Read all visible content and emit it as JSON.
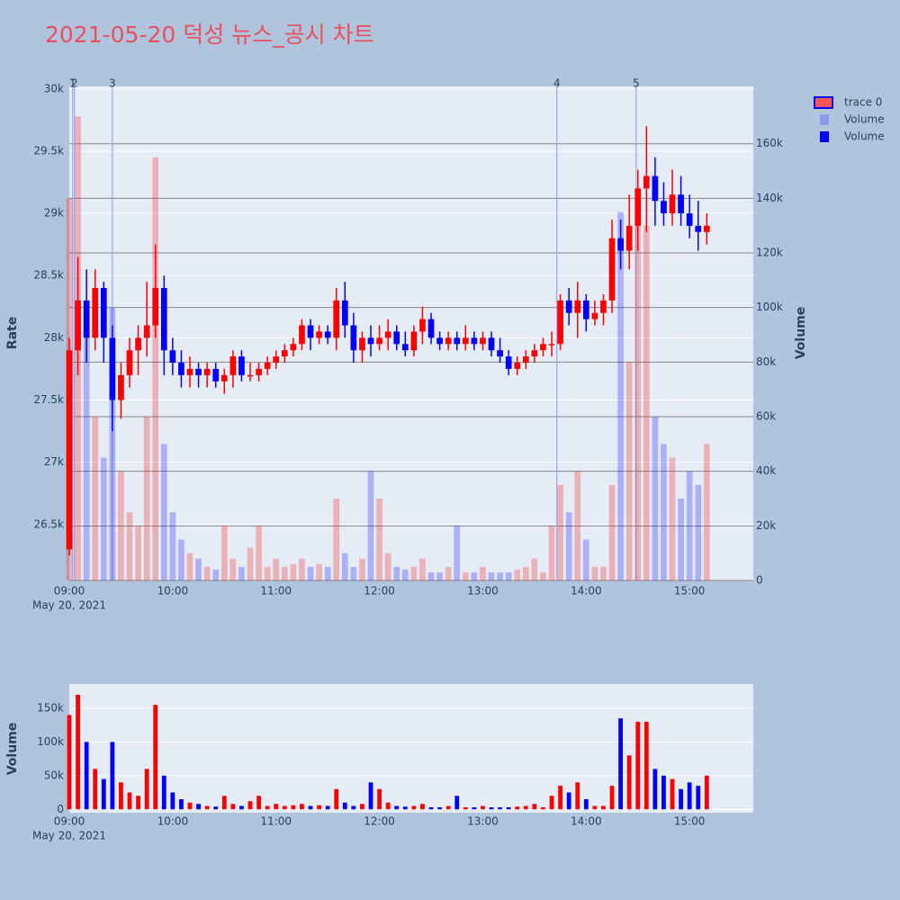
{
  "chart_data": [
    {
      "type": "candlestick",
      "title": "2021-05-20 덕성 뉴스_공시 차트",
      "name": "trace 0",
      "x": [
        "09:00",
        "09:05",
        "09:10",
        "09:15",
        "09:20",
        "09:25",
        "09:30",
        "09:35",
        "09:40",
        "09:45",
        "09:50",
        "09:55",
        "10:00",
        "10:05",
        "10:10",
        "10:15",
        "10:20",
        "10:25",
        "10:30",
        "10:35",
        "10:40",
        "10:45",
        "10:50",
        "10:55",
        "11:00",
        "11:05",
        "11:10",
        "11:15",
        "11:20",
        "11:25",
        "11:30",
        "11:35",
        "11:40",
        "11:45",
        "11:50",
        "11:55",
        "12:00",
        "12:05",
        "12:10",
        "12:15",
        "12:20",
        "12:25",
        "12:30",
        "12:35",
        "12:40",
        "12:45",
        "12:50",
        "12:55",
        "13:00",
        "13:05",
        "13:10",
        "13:15",
        "13:20",
        "13:25",
        "13:30",
        "13:35",
        "13:40",
        "13:45",
        "13:50",
        "13:55",
        "14:00",
        "14:05",
        "14:10",
        "14:15",
        "14:20",
        "14:25",
        "14:30",
        "14:35",
        "14:40",
        "14:45",
        "14:50",
        "14:55",
        "15:00",
        "15:05",
        "15:10"
      ],
      "open": [
        26300,
        27900,
        28300,
        28000,
        28400,
        28000,
        27500,
        27700,
        27900,
        28000,
        28100,
        28400,
        27900,
        27800,
        27700,
        27750,
        27700,
        27750,
        27650,
        27700,
        27850,
        27700,
        27700,
        27750,
        27800,
        27850,
        27900,
        27950,
        28100,
        28000,
        28050,
        28000,
        28300,
        28100,
        27900,
        28000,
        27950,
        28000,
        28050,
        27950,
        27900,
        28050,
        28150,
        28000,
        27950,
        28000,
        27950,
        28000,
        27950,
        28000,
        27900,
        27850,
        27750,
        27800,
        27850,
        27900,
        27950,
        27950,
        28300,
        28200,
        28300,
        28150,
        28200,
        28300,
        28800,
        28700,
        28900,
        29200,
        29300,
        29100,
        29000,
        29150,
        29000,
        28900,
        28850
      ],
      "high": [
        28000,
        28650,
        28550,
        28550,
        28450,
        28100,
        27800,
        28000,
        28100,
        28450,
        28750,
        28500,
        28000,
        27900,
        27850,
        27800,
        27800,
        27800,
        27750,
        27900,
        27900,
        27800,
        27800,
        27850,
        27900,
        27950,
        28000,
        28150,
        28150,
        28100,
        28100,
        28400,
        28450,
        28200,
        28050,
        28100,
        28100,
        28150,
        28100,
        28050,
        28100,
        28250,
        28200,
        28050,
        28050,
        28050,
        28100,
        28050,
        28050,
        28050,
        28000,
        27900,
        27850,
        27900,
        27950,
        28000,
        28050,
        28350,
        28400,
        28450,
        28350,
        28300,
        28350,
        28950,
        28950,
        29150,
        29350,
        29700,
        29450,
        29250,
        29350,
        29300,
        29150,
        29100,
        29000
      ],
      "low": [
        26250,
        27700,
        27800,
        27900,
        27800,
        27250,
        27350,
        27600,
        27700,
        27850,
        28000,
        27700,
        27700,
        27600,
        27600,
        27600,
        27600,
        27600,
        27550,
        27600,
        27650,
        27650,
        27650,
        27700,
        27750,
        27800,
        27850,
        27900,
        27900,
        27950,
        27950,
        27900,
        28000,
        27800,
        27800,
        27850,
        27900,
        27900,
        27900,
        27850,
        27850,
        27950,
        27950,
        27900,
        27900,
        27900,
        27900,
        27900,
        27900,
        27850,
        27800,
        27700,
        27700,
        27750,
        27800,
        27850,
        27850,
        27900,
        28100,
        28000,
        28050,
        28100,
        28100,
        28200,
        28550,
        28550,
        28700,
        28850,
        28900,
        28900,
        28900,
        28900,
        28800,
        28700,
        28750
      ],
      "close": [
        27900,
        28300,
        28000,
        28400,
        28000,
        27500,
        27700,
        27900,
        28000,
        28100,
        28400,
        27900,
        27800,
        27700,
        27750,
        27700,
        27750,
        27650,
        27700,
        27850,
        27700,
        27700,
        27750,
        27800,
        27850,
        27900,
        27950,
        28100,
        28000,
        28050,
        28000,
        28300,
        28100,
        27900,
        28000,
        27950,
        28000,
        28050,
        27950,
        27900,
        28050,
        28150,
        28000,
        27950,
        28000,
        27950,
        28000,
        27950,
        28000,
        27900,
        27850,
        27750,
        27800,
        27850,
        27900,
        27950,
        27950,
        28300,
        28200,
        28300,
        28150,
        28200,
        28300,
        28800,
        28700,
        28900,
        29200,
        29300,
        29100,
        29000,
        29150,
        29000,
        28900,
        28850,
        28900
      ],
      "increasing_color": "#ff0000",
      "decreasing_color": "#0000ff",
      "volume": {
        "name": "Volume",
        "axis": "y2",
        "values": [
          140000,
          170000,
          100000,
          60000,
          45000,
          100000,
          40000,
          25000,
          20000,
          60000,
          155000,
          50000,
          25000,
          15000,
          10000,
          8000,
          5000,
          4000,
          20000,
          8000,
          5000,
          12000,
          20000,
          5000,
          8000,
          5000,
          6000,
          8000,
          5000,
          6000,
          5000,
          30000,
          10000,
          5000,
          8000,
          40000,
          30000,
          10000,
          5000,
          4000,
          5000,
          8000,
          3000,
          3000,
          5000,
          20000,
          3000,
          3000,
          5000,
          3000,
          3000,
          3000,
          4000,
          5000,
          8000,
          3000,
          20000,
          35000,
          25000,
          40000,
          15000,
          5000,
          5000,
          35000,
          135000,
          80000,
          130000,
          130000,
          60000,
          50000,
          45000,
          30000,
          40000,
          35000,
          50000
        ]
      },
      "xlim": [
        "09:00",
        "15:37"
      ],
      "xticks": [
        "09:00",
        "10:00",
        "11:00",
        "12:00",
        "13:00",
        "14:00",
        "15:00"
      ],
      "x_date": "May 20, 2021",
      "ylim": [
        26050,
        30020
      ],
      "yticks": [
        {
          "value": 26500,
          "label": "26.5k"
        },
        {
          "value": 27000,
          "label": "27k"
        },
        {
          "value": 27500,
          "label": "27.5k"
        },
        {
          "value": 28000,
          "label": "28k"
        },
        {
          "value": 28500,
          "label": "28.5k"
        },
        {
          "value": 29000,
          "label": "29k"
        },
        {
          "value": 29500,
          "label": "29.5k"
        },
        {
          "value": 30000,
          "label": "30k"
        }
      ],
      "y2lim": [
        0,
        181000
      ],
      "y2ticks": [
        0,
        {
          "value": 20000,
          "label": "20k"
        },
        {
          "value": 40000,
          "label": "40k"
        },
        {
          "value": 60000,
          "label": "60k"
        },
        {
          "value": 80000,
          "label": "80k"
        },
        {
          "value": 100000,
          "label": "100k"
        },
        {
          "value": 120000,
          "label": "120k"
        },
        {
          "value": 140000,
          "label": "140k"
        },
        {
          "value": 160000,
          "label": "160k"
        }
      ],
      "ylabel": "Rate",
      "y2label": "Volume",
      "events": [
        {
          "label": "1",
          "x": "09:02"
        },
        {
          "label": "2",
          "x": "09:03"
        },
        {
          "label": "3",
          "x": "09:25"
        },
        {
          "label": "4",
          "x": "13:43"
        },
        {
          "label": "5",
          "x": "14:29"
        }
      ]
    },
    {
      "type": "bar",
      "name": "Volume",
      "ylabel": "Volume",
      "x_date": "May 20, 2021",
      "ylim": [
        -5000,
        186000
      ],
      "yticks": [
        0,
        {
          "value": 50000,
          "label": "50k"
        },
        {
          "value": 100000,
          "label": "100k"
        },
        {
          "value": 150000,
          "label": "150k"
        }
      ]
    }
  ]
}
